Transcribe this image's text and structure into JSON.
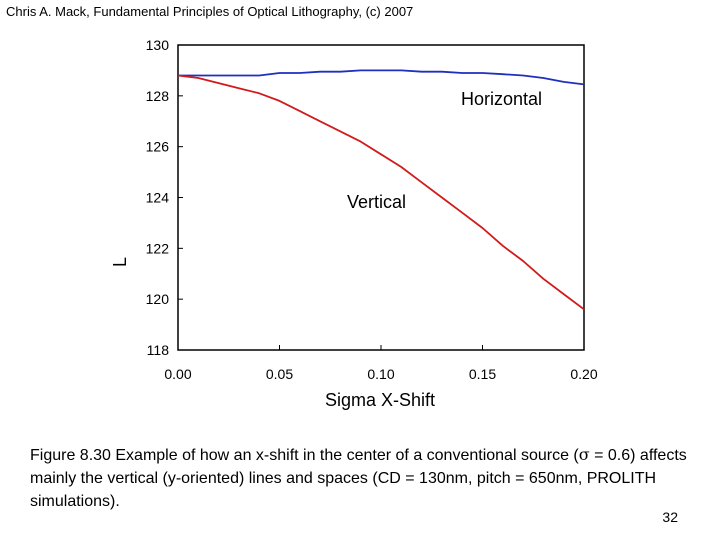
{
  "header": {
    "citation": "Chris A. Mack, Fundamental Principles of Optical Lithography, (c) 2007"
  },
  "caption": {
    "prefix": "Figure 8.30  Example of how an x-shift in the center of a conventional source (",
    "sigma_symbol": "σ",
    "suffix": " = 0.6) affects mainly the vertical (y-oriented) lines and spaces (CD = 130nm, pitch = 650nm, PROLITH simulations)."
  },
  "page_number": "32",
  "colors": {
    "horizontal": "#1f2fc0",
    "vertical": "#d21a1a",
    "frame": "#000000"
  },
  "chart_data": {
    "type": "line",
    "title": "",
    "xlabel": "Sigma X-Shift",
    "ylabel": "L",
    "xlim": [
      0.0,
      0.2
    ],
    "ylim": [
      118,
      130
    ],
    "x_ticks": [
      0.0,
      0.05,
      0.1,
      0.15,
      0.2
    ],
    "x_tick_labels": [
      "0.00",
      "0.05",
      "0.10",
      "0.15",
      "0.20"
    ],
    "y_ticks": [
      118,
      120,
      122,
      124,
      126,
      128,
      130
    ],
    "y_tick_labels": [
      "118",
      "120",
      "122",
      "124",
      "126",
      "128",
      "130"
    ],
    "grid": false,
    "series": [
      {
        "name": "Horizontal",
        "x": [
          0.0,
          0.01,
          0.02,
          0.03,
          0.04,
          0.05,
          0.06,
          0.07,
          0.08,
          0.09,
          0.1,
          0.11,
          0.12,
          0.13,
          0.14,
          0.15,
          0.16,
          0.17,
          0.18,
          0.19,
          0.2
        ],
        "values": [
          128.8,
          128.8,
          128.8,
          128.8,
          128.8,
          128.9,
          128.9,
          128.95,
          128.95,
          129.0,
          129.0,
          129.0,
          128.95,
          128.95,
          128.9,
          128.9,
          128.85,
          128.8,
          128.7,
          128.55,
          128.45
        ]
      },
      {
        "name": "Vertical",
        "x": [
          0.0,
          0.01,
          0.02,
          0.03,
          0.04,
          0.05,
          0.06,
          0.07,
          0.08,
          0.09,
          0.1,
          0.11,
          0.12,
          0.13,
          0.14,
          0.15,
          0.16,
          0.17,
          0.18,
          0.19,
          0.2
        ],
        "values": [
          128.8,
          128.7,
          128.5,
          128.3,
          128.1,
          127.8,
          127.4,
          127.0,
          126.6,
          126.2,
          125.7,
          125.2,
          124.6,
          124.0,
          123.4,
          122.8,
          122.1,
          121.5,
          120.8,
          120.2,
          119.6
        ]
      }
    ],
    "annotations": [
      "Horizontal",
      "Vertical"
    ]
  }
}
